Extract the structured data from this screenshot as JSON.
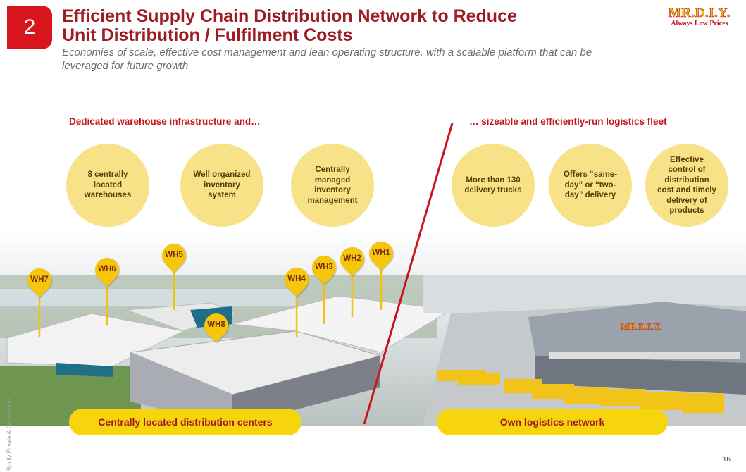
{
  "header": {
    "number": "2",
    "title_lines": [
      "Efficient Supply Chain Distribution Network to Reduce",
      "Unit Distribution / Fulfilment Costs"
    ],
    "subtitle": "Economies of scale, effective cost management and lean operating structure, with a scalable platform that can be leveraged for future growth",
    "logo": "MR.D.I.Y.",
    "tagline": "Always Low Prices"
  },
  "left": {
    "heading": "Dedicated warehouse infrastructure and…",
    "circles": [
      "8 centrally located warehouses",
      "Well organized inventory system",
      "Centrally managed inventory management"
    ],
    "banner": "Centrally located distribution centers"
  },
  "right": {
    "heading": "… sizeable and efficiently-run logistics fleet",
    "circles": [
      "More than 130 delivery trucks",
      "Offers “same-day” or “two-day” delivery",
      "Effective control of distribution cost and timely delivery of products"
    ],
    "banner": "Own logistics network"
  },
  "pins": [
    "WH1",
    "WH2",
    "WH3",
    "WH4",
    "WH5",
    "WH6",
    "WH7",
    "WH8"
  ],
  "building_sign": "MR.D.I.Y.",
  "footer": {
    "confidential": "Strictly Private & Confidential",
    "page": "16"
  }
}
